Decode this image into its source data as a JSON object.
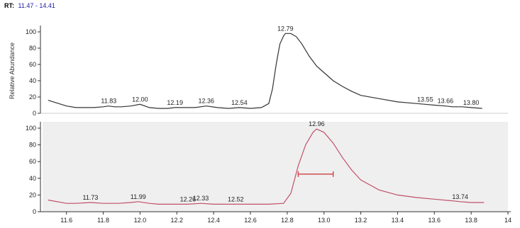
{
  "header": {
    "rt_label": "RT:",
    "rt_range": "11.47 - 14.41"
  },
  "chart_data": [
    {
      "type": "line",
      "ylabel": "Relative Abundance",
      "xlim": [
        11.47,
        14.0
      ],
      "ylim": [
        0,
        100
      ],
      "yticks": [
        0,
        20,
        40,
        60,
        80,
        100
      ],
      "line_color": "#333333",
      "background": "#ffffff",
      "series": [
        {
          "x": [
            11.5,
            11.6,
            11.65,
            11.7,
            11.75,
            11.8,
            11.83,
            11.86,
            11.9,
            11.95,
            12.0,
            12.05,
            12.1,
            12.15,
            12.19,
            12.25,
            12.3,
            12.36,
            12.42,
            12.48,
            12.54,
            12.6,
            12.66,
            12.7,
            12.72,
            12.74,
            12.76,
            12.78,
            12.79,
            12.82,
            12.85,
            12.88,
            12.92,
            12.96,
            13.0,
            13.05,
            13.1,
            13.15,
            13.2,
            13.3,
            13.4,
            13.5,
            13.55,
            13.6,
            13.66,
            13.7,
            13.75,
            13.8,
            13.86
          ],
          "y": [
            16,
            9,
            7,
            7,
            7,
            8,
            9,
            8,
            8,
            9,
            11,
            7,
            6,
            6,
            7,
            7,
            7,
            9,
            7,
            6,
            7,
            6,
            7,
            12,
            30,
            60,
            85,
            95,
            98,
            98,
            94,
            85,
            70,
            58,
            50,
            40,
            33,
            27,
            22,
            18,
            14,
            12,
            11,
            10,
            9,
            8,
            8,
            7,
            6
          ]
        }
      ],
      "peak_labels": [
        {
          "text": "11.83",
          "x": 11.83,
          "y": 9
        },
        {
          "text": "12.00",
          "x": 12.0,
          "y": 11
        },
        {
          "text": "12.19",
          "x": 12.19,
          "y": 7
        },
        {
          "text": "12.36",
          "x": 12.36,
          "y": 9
        },
        {
          "text": "12.54",
          "x": 12.54,
          "y": 7
        },
        {
          "text": "12.79",
          "x": 12.79,
          "y": 98
        },
        {
          "text": "13.55",
          "x": 13.55,
          "y": 11
        },
        {
          "text": "13.66",
          "x": 13.66,
          "y": 9
        },
        {
          "text": "13.80",
          "x": 13.8,
          "y": 7
        }
      ]
    },
    {
      "type": "line",
      "ylabel": "",
      "xlim": [
        11.47,
        14.0
      ],
      "ylim": [
        0,
        100
      ],
      "yticks": [
        0,
        20,
        40,
        60,
        80,
        100
      ],
      "xticks": [
        11.6,
        11.8,
        12.0,
        12.2,
        12.4,
        12.6,
        12.8,
        13.0,
        13.2,
        13.4,
        13.6,
        13.8,
        14.0
      ],
      "xtick_labels": [
        "11.6",
        "11.8",
        "12.0",
        "12.2",
        "12.4",
        "12.6",
        "12.8",
        "13.0",
        "13.2",
        "13.4",
        "13.6",
        "13.8",
        "14"
      ],
      "line_color": "#c0506a",
      "background": "#efefef",
      "series": [
        {
          "x": [
            11.5,
            11.6,
            11.65,
            11.73,
            11.8,
            11.88,
            11.95,
            11.99,
            12.05,
            12.1,
            12.2,
            12.26,
            12.33,
            12.4,
            12.52,
            12.6,
            12.7,
            12.78,
            12.82,
            12.86,
            12.9,
            12.94,
            12.96,
            13.0,
            13.05,
            13.1,
            13.15,
            13.2,
            13.3,
            13.4,
            13.5,
            13.6,
            13.7,
            13.74,
            13.8,
            13.87
          ],
          "y": [
            14,
            10,
            10,
            11,
            10,
            10,
            11,
            12,
            10,
            9,
            9,
            9,
            10,
            9,
            9,
            9,
            9,
            10,
            22,
            55,
            80,
            95,
            99,
            95,
            82,
            65,
            50,
            38,
            26,
            20,
            17,
            15,
            13,
            12,
            11,
            11
          ]
        }
      ],
      "peak_labels": [
        {
          "text": "11.73",
          "x": 11.73,
          "y": 11
        },
        {
          "text": "11.99",
          "x": 11.99,
          "y": 12
        },
        {
          "text": "12.26",
          "x": 12.26,
          "y": 9
        },
        {
          "text": "12.33",
          "x": 12.33,
          "y": 10
        },
        {
          "text": "12.52",
          "x": 12.52,
          "y": 9
        },
        {
          "text": "12.96",
          "x": 12.96,
          "y": 99
        },
        {
          "text": "13.74",
          "x": 13.74,
          "y": 12
        }
      ],
      "integration_marker": {
        "x_start": 12.86,
        "x_end": 13.05,
        "y": 45,
        "color": "#d24c4c"
      }
    }
  ]
}
